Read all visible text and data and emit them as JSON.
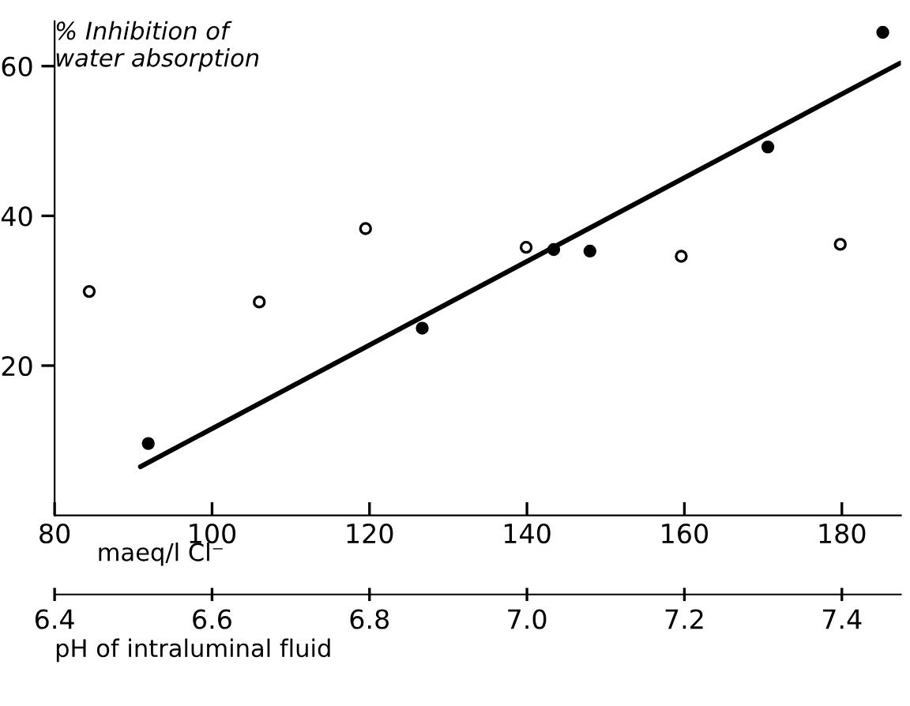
{
  "chart_data": {
    "type": "scatter",
    "ylabel": "% Inhibition of\nwater absorption",
    "xlabel": "maeq/l Cl⁻",
    "x2label": "pH of intraluminal fluid",
    "xlim": [
      80,
      187.5
    ],
    "xticks": [
      80,
      100,
      120,
      140,
      160,
      180
    ],
    "x2lim": [
      6.4,
      7.475
    ],
    "x2ticks": [
      {
        "value": 6.4,
        "label": "6.4"
      },
      {
        "value": 6.6,
        "label": "6.6"
      },
      {
        "value": 6.8,
        "label": "6.8"
      },
      {
        "value": 7.0,
        "label": "7.0"
      },
      {
        "value": 7.2,
        "label": "7.2"
      },
      {
        "value": 7.4,
        "label": "7.4"
      }
    ],
    "ylim": [
      0,
      66
    ],
    "yticks": [
      20,
      40,
      60
    ],
    "grid": false,
    "legend": false,
    "series": [
      {
        "marker": "circle",
        "color": "#ffffff",
        "x": [
          84.4,
          106.0,
          119.5,
          139.9,
          159.6,
          179.8
        ],
        "values": [
          29.9,
          28.5,
          38.3,
          35.8,
          34.6,
          36.2
        ]
      },
      {
        "marker": "circle",
        "color": "#000000",
        "x": [
          91.9,
          126.7,
          143.4,
          148.0,
          170.6,
          185.2
        ],
        "values": [
          9.6,
          25.0,
          35.5,
          35.3,
          49.2,
          64.5
        ]
      },
      {
        "type": "line",
        "marker": "none",
        "line_style": "solid",
        "color": "#000000",
        "x": [
          90.9,
          187.4
        ],
        "values": [
          6.5,
          60.4
        ]
      }
    ]
  }
}
